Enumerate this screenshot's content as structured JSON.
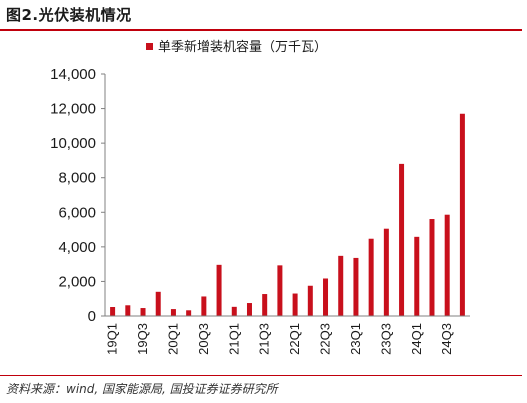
{
  "figure": {
    "title": "图2.光伏装机情况",
    "source": "资料来源：wind, 国家能源局, 国投证券证券研究所"
  },
  "chart_data": {
    "type": "bar",
    "series": [
      {
        "name": "单季新增装机容量（万千瓦）",
        "color": "#c8101c",
        "values": [
          520,
          620,
          460,
          1400,
          400,
          330,
          1130,
          2960,
          530,
          750,
          1270,
          2930,
          1300,
          1750,
          2170,
          3480,
          3360,
          4470,
          5050,
          8800,
          4580,
          5610,
          5860,
          11700
        ]
      }
    ],
    "categories": [
      "19Q1",
      "19Q2",
      "19Q3",
      "19Q4",
      "20Q1",
      "20Q2",
      "20Q3",
      "20Q4",
      "21Q1",
      "21Q2",
      "21Q3",
      "21Q4",
      "22Q1",
      "22Q2",
      "22Q3",
      "22Q4",
      "23Q1",
      "23Q2",
      "23Q3",
      "23Q4",
      "24Q1",
      "24Q2",
      "24Q3",
      "24Q4"
    ],
    "category_labels": [
      "19Q1",
      "",
      "19Q3",
      "",
      "20Q1",
      "",
      "20Q3",
      "",
      "21Q1",
      "",
      "21Q3",
      "",
      "22Q1",
      "",
      "22Q3",
      "",
      "23Q1",
      "",
      "23Q3",
      "",
      "24Q1",
      "",
      "24Q3",
      ""
    ],
    "ylim": [
      0,
      14000
    ],
    "yticks": [
      0,
      2000,
      4000,
      6000,
      8000,
      10000,
      12000,
      14000
    ],
    "ytick_labels": [
      "0",
      "2,000",
      "4,000",
      "6,000",
      "8,000",
      "10,000",
      "12,000",
      "14,000"
    ],
    "grid": false,
    "legend_position": "top"
  }
}
